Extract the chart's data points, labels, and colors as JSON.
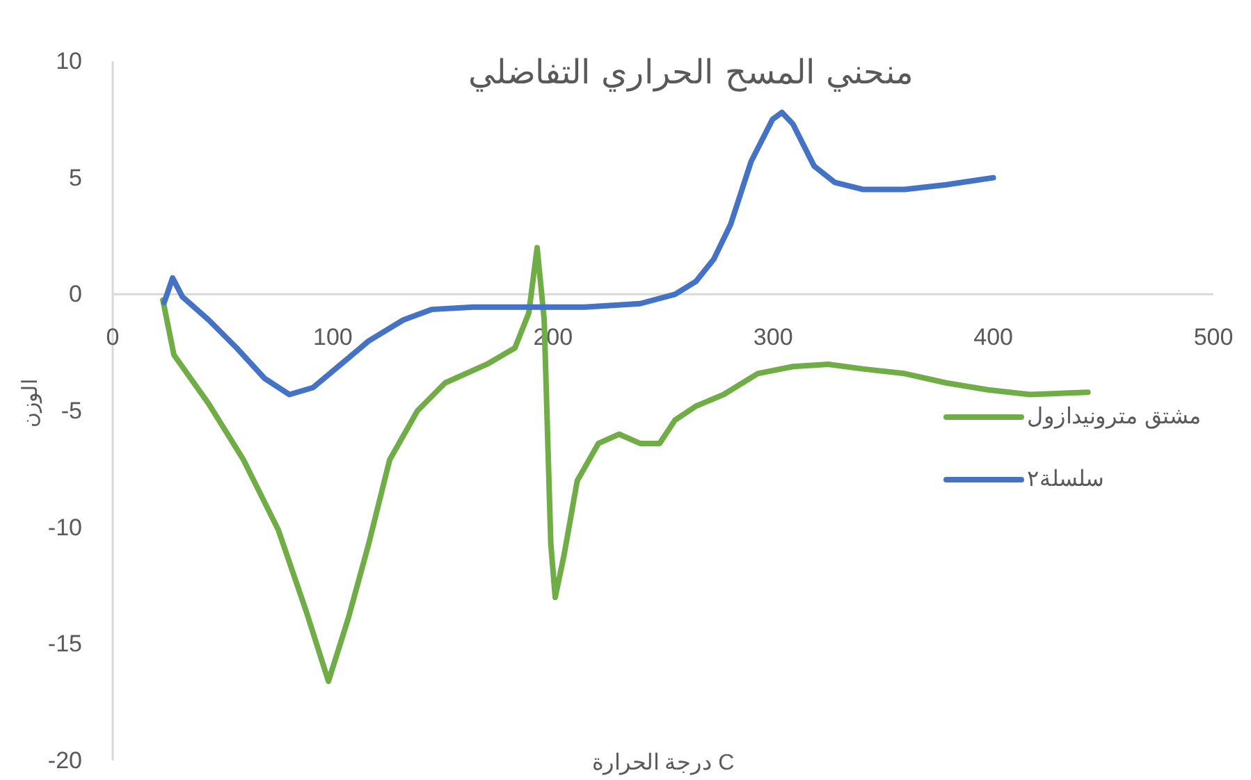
{
  "chart_data": {
    "type": "line",
    "title": "منحني المسح الحراري التفاضلي",
    "xlabel": "درجة الحرارة C",
    "ylabel": "الوزن",
    "xlim": [
      0,
      500
    ],
    "xticks": [
      0,
      100,
      200,
      300,
      400,
      500
    ],
    "ylim": [
      -20,
      10
    ],
    "yticks": [
      -20,
      -15,
      -10,
      -5,
      0,
      5,
      10
    ],
    "legend": "right",
    "grid": false,
    "marker": "none",
    "line_style": "solid",
    "series": [
      {
        "name": "مشتق مترونيدازول",
        "color": "#70ad47",
        "x": [
          22.8,
          27.8,
          43.6,
          59.4,
          75.2,
          87.9,
          98,
          107,
          116.3,
          125.8,
          138.4,
          151,
          170,
          182.7,
          189,
          192.8,
          196,
          199,
          201,
          205,
          211,
          220.6,
          230,
          239.6,
          248.4,
          255.4,
          264.9,
          277.5,
          293,
          309,
          325,
          340.7,
          359.7,
          378.6,
          397.6,
          416.6,
          443
        ],
        "values": [
          -0.25,
          -2.6,
          -4.7,
          -7.1,
          -10.1,
          -13.6,
          -16.6,
          -13.9,
          -10.7,
          -7.1,
          -5.0,
          -3.8,
          -3.0,
          -2.3,
          -0.8,
          2.0,
          -1.1,
          -10.7,
          -13.0,
          -11.2,
          -8.0,
          -6.4,
          -6.0,
          -6.4,
          -6.4,
          -5.4,
          -4.8,
          -4.3,
          -3.4,
          -3.1,
          -3.0,
          -3.2,
          -3.4,
          -3.8,
          -4.1,
          -4.3,
          -4.2
        ]
      },
      {
        "name": "سلسلة٢",
        "color": "#4472c4",
        "x": [
          23.4,
          27.2,
          31.6,
          43.6,
          56.3,
          68.9,
          80.3,
          91,
          103.7,
          116.3,
          132,
          144.8,
          163.7,
          189,
          214.3,
          239.6,
          255.4,
          264.9,
          273,
          280.7,
          290,
          299.7,
          304,
          309,
          318.6,
          328,
          340.7,
          359.7,
          378.6,
          400
        ],
        "values": [
          -0.35,
          0.7,
          -0.1,
          -1.1,
          -2.3,
          -3.6,
          -4.3,
          -4.0,
          -3.0,
          -2.0,
          -1.1,
          -0.65,
          -0.55,
          -0.55,
          -0.55,
          -0.4,
          0,
          0.55,
          1.5,
          3.0,
          5.7,
          7.5,
          7.8,
          7.3,
          5.5,
          4.8,
          4.5,
          4.5,
          4.7,
          5.0
        ]
      }
    ]
  }
}
